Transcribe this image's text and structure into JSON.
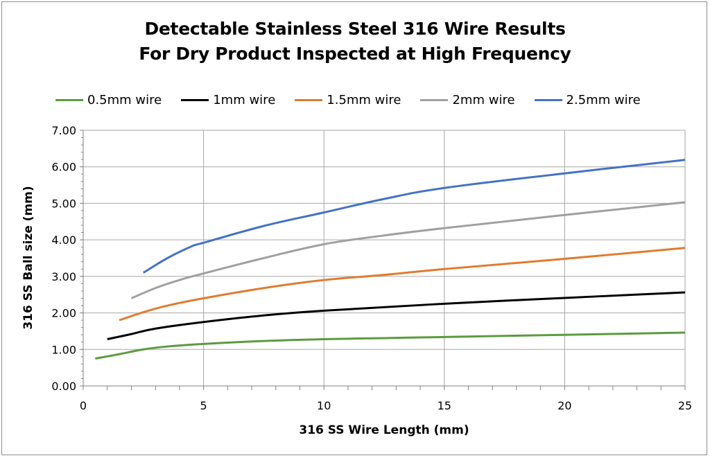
{
  "chart_data": {
    "type": "line",
    "title": "Detectable Stainless Steel 316 Wire Results",
    "subtitle": "For Dry Product Inspected at High Frequency",
    "xlabel": "316 SS Wire Length (mm)",
    "ylabel": "316 SS Ball size (mm)",
    "xlim": [
      0,
      25
    ],
    "ylim": [
      0,
      7
    ],
    "x_ticks": [
      "0",
      "5",
      "10",
      "15",
      "20",
      "25"
    ],
    "y_ticks": [
      "0.00",
      "1.00",
      "2.00",
      "3.00",
      "4.00",
      "5.00",
      "6.00",
      "7.00"
    ],
    "grid": true,
    "legend_position": "top",
    "series": [
      {
        "name": "0.5mm wire",
        "color": "#5b9b3e",
        "x": [
          0.5,
          1.5,
          2.5,
          3.5,
          5,
          7.5,
          10,
          12.5,
          15,
          20,
          25
        ],
        "y": [
          0.75,
          0.87,
          1.0,
          1.08,
          1.15,
          1.23,
          1.28,
          1.31,
          1.34,
          1.4,
          1.46
        ]
      },
      {
        "name": "1mm wire",
        "color": "#000000",
        "x": [
          1,
          2,
          3,
          5,
          7.5,
          10,
          15,
          20,
          25
        ],
        "y": [
          1.28,
          1.42,
          1.57,
          1.75,
          1.93,
          2.06,
          2.25,
          2.41,
          2.56
        ]
      },
      {
        "name": "1.5mm wire",
        "color": "#e07b30",
        "x": [
          1.5,
          2.5,
          3.5,
          5,
          7.5,
          10,
          12.5,
          15,
          20,
          25
        ],
        "y": [
          1.8,
          2.02,
          2.2,
          2.4,
          2.68,
          2.9,
          3.04,
          3.2,
          3.48,
          3.78
        ]
      },
      {
        "name": "2mm wire",
        "color": "#a0a0a0",
        "x": [
          2,
          3,
          4,
          5,
          7.5,
          10,
          12.5,
          15,
          20,
          25
        ],
        "y": [
          2.4,
          2.68,
          2.9,
          3.08,
          3.5,
          3.88,
          4.12,
          4.32,
          4.68,
          5.03
        ]
      },
      {
        "name": "2.5mm wire",
        "color": "#4472c4",
        "x": [
          2.5,
          3.5,
          4.5,
          5,
          7.5,
          10,
          12.5,
          15,
          20,
          25
        ],
        "y": [
          3.1,
          3.5,
          3.82,
          3.92,
          4.38,
          4.75,
          5.12,
          5.42,
          5.82,
          6.19
        ]
      }
    ]
  }
}
